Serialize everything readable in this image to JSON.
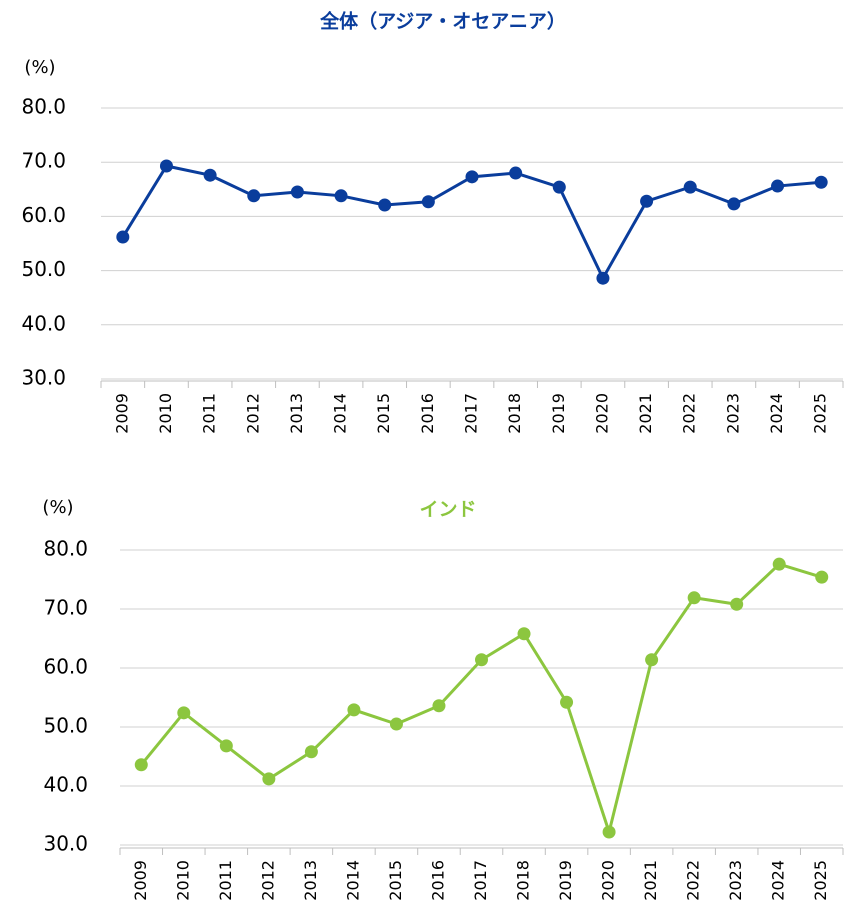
{
  "chart_data": [
    {
      "type": "line",
      "title": "全体（アジア・オセアニア）",
      "y_label": "(%)",
      "categories": [
        "2009",
        "2010",
        "2011",
        "2012",
        "2013",
        "2014",
        "2015",
        "2016",
        "2017",
        "2018",
        "2019",
        "2020",
        "2021",
        "2022",
        "2023",
        "2024",
        "2025"
      ],
      "series": [
        {
          "name": "全体（アジア・オセアニア）",
          "color": "#0a3d9c",
          "values": [
            56.2,
            69.3,
            67.6,
            63.8,
            64.5,
            63.8,
            62.1,
            62.7,
            67.3,
            68.0,
            65.4,
            48.6,
            62.8,
            65.4,
            62.3,
            65.6,
            66.3
          ]
        }
      ],
      "ylim": [
        30,
        80
      ],
      "yticks": [
        {
          "value": 30,
          "label": "30.0"
        },
        {
          "value": 40,
          "label": "40.0"
        },
        {
          "value": 50,
          "label": "50.0"
        },
        {
          "value": 60,
          "label": "60.0"
        },
        {
          "value": 70,
          "label": "70.0"
        },
        {
          "value": 80,
          "label": "80.0"
        }
      ],
      "grid": true
    },
    {
      "type": "line",
      "title": "インド",
      "y_label": "(%)",
      "categories": [
        "2009",
        "2010",
        "2011",
        "2012",
        "2013",
        "2014",
        "2015",
        "2016",
        "2017",
        "2018",
        "2019",
        "2020",
        "2021",
        "2022",
        "2023",
        "2024",
        "2025"
      ],
      "series": [
        {
          "name": "インド",
          "color": "#8cc63f",
          "values": [
            43.6,
            52.4,
            46.8,
            41.2,
            45.8,
            52.9,
            50.5,
            53.6,
            61.4,
            65.8,
            54.2,
            32.2,
            61.4,
            71.9,
            70.8,
            77.6,
            75.4
          ]
        }
      ],
      "ylim": [
        30,
        80
      ],
      "yticks": [
        {
          "value": 30,
          "label": "30.0"
        },
        {
          "value": 40,
          "label": "40.0"
        },
        {
          "value": 50,
          "label": "50.0"
        },
        {
          "value": 60,
          "label": "60.0"
        },
        {
          "value": 70,
          "label": "70.0"
        },
        {
          "value": 80,
          "label": "80.0"
        }
      ],
      "grid": true
    }
  ]
}
